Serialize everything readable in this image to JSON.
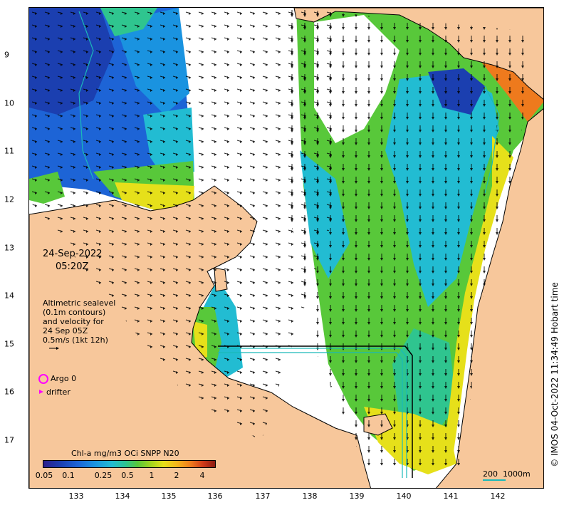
{
  "axes": {
    "x_ticks": [
      "133",
      "134",
      "135",
      "136",
      "137",
      "138",
      "139",
      "140",
      "141",
      "142"
    ],
    "y_ticks": [
      "9",
      "10",
      "11",
      "12",
      "13",
      "14",
      "15",
      "16",
      "17"
    ]
  },
  "timestamp": {
    "date": "24-Sep-2022",
    "time": "05:20Z"
  },
  "legend_text": {
    "line1": "Altimetric sealevel",
    "line2": "(0.1m contours)",
    "line3": "and velocity for",
    "line4": "24 Sep 05Z",
    "line5": "0.5m/s (1kt 12h)"
  },
  "markers": {
    "argo_label": "Argo 0",
    "drifter_label": "drifter"
  },
  "colorbar": {
    "title": "Chl-a mg/m3 OCi SNPP N20",
    "labels": [
      "0.05",
      "0.1",
      "0.25",
      "0.5",
      "1",
      "2",
      "4"
    ]
  },
  "scale_bar": {
    "label_a": "200",
    "label_b": "1000m"
  },
  "copyright": "© IMOS 04-Oct-2022 11:34:49 Hobart time",
  "colors": {
    "land": "#f7c79b",
    "low_chl": "#1d64d6",
    "mid_chl": "#22bcd2",
    "high_chl": "#58c83a",
    "coastal_chl": "#ee7a1d",
    "marker": "#ff00ff",
    "contour": "#1ab9b9"
  }
}
